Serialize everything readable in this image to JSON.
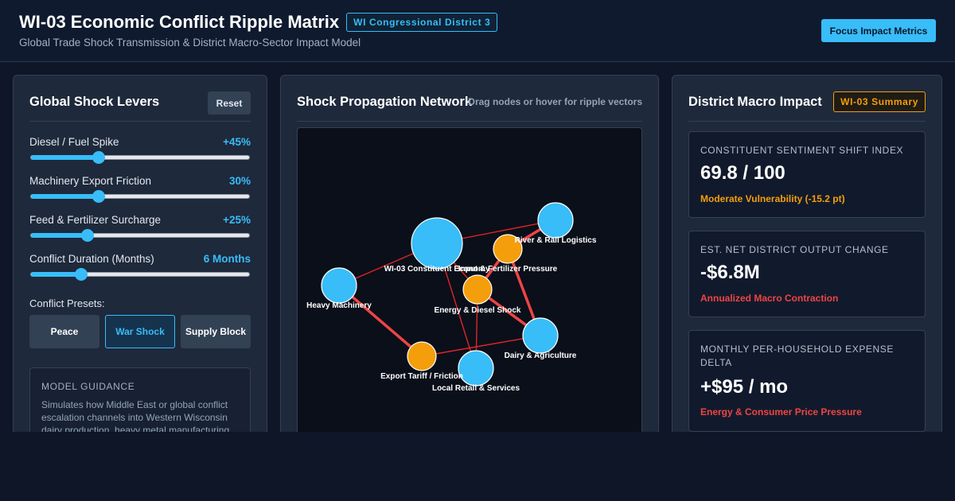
{
  "header": {
    "title": "WI-03 Economic Conflict Ripple Matrix",
    "district_badge": "WI Congressional District 3",
    "subtitle": "Global Trade Shock Transmission & District Macro-Sector Impact Model",
    "focus_button": "Focus Impact Metrics"
  },
  "levers": {
    "title": "Global Shock Levers",
    "reset_label": "Reset",
    "sliders": [
      {
        "label": "Diesel / Fuel Spike",
        "value": "+45%",
        "fraction": 0.31
      },
      {
        "label": "Machinery Export Friction",
        "value": "30%",
        "fraction": 0.31
      },
      {
        "label": "Feed & Fertilizer Surcharge",
        "value": "+25%",
        "fraction": 0.26
      },
      {
        "label": "Conflict Duration (Months)",
        "value": "6 Months",
        "fraction": 0.23
      }
    ],
    "presets_label": "Conflict Presets:",
    "presets": [
      {
        "label": "Peace",
        "active": false
      },
      {
        "label": "War Shock",
        "active": true
      },
      {
        "label": "Supply Block",
        "active": false
      }
    ],
    "guidance_title": "MODEL GUIDANCE",
    "guidance_text": "Simulates how Middle East or global conflict escalation channels into Western Wisconsin dairy production, heavy metal manufacturing"
  },
  "network": {
    "title": "Shock Propagation Network",
    "hint": "Drag nodes or hover for ripple vectors",
    "colors": {
      "district": "#38bdf8",
      "shock": "#f59e0b",
      "heavy_edge": "#ef4444",
      "light_edge": "#dc2626"
    },
    "nodes": [
      {
        "id": "constituent",
        "label": "WI-03 Constituent Economy",
        "kind": "district"
      },
      {
        "id": "rail",
        "label": "River & Rail Logistics",
        "kind": "district"
      },
      {
        "id": "feed",
        "label": "Input & Fertilizer Pressure",
        "kind": "shock"
      },
      {
        "id": "heavy",
        "label": "Heavy Machinery",
        "kind": "district"
      },
      {
        "id": "energy",
        "label": "Energy & Diesel Shock",
        "kind": "shock"
      },
      {
        "id": "dairy",
        "label": "Dairy & Agriculture",
        "kind": "district"
      },
      {
        "id": "tariff",
        "label": "Export Tariff / Friction",
        "kind": "shock"
      },
      {
        "id": "retail",
        "label": "Local Retail & Services",
        "kind": "district"
      }
    ],
    "edges": [
      {
        "from": "constituent",
        "to": "rail",
        "weight": "light"
      },
      {
        "from": "constituent",
        "to": "heavy",
        "weight": "light"
      },
      {
        "from": "constituent",
        "to": "energy",
        "weight": "light"
      },
      {
        "from": "constituent",
        "to": "retail",
        "weight": "light"
      },
      {
        "from": "feed",
        "to": "rail",
        "weight": "heavy"
      },
      {
        "from": "feed",
        "to": "dairy",
        "weight": "heavy"
      },
      {
        "from": "energy",
        "to": "feed",
        "weight": "heavy"
      },
      {
        "from": "energy",
        "to": "dairy",
        "weight": "heavy"
      },
      {
        "from": "energy",
        "to": "retail",
        "weight": "light"
      },
      {
        "from": "heavy",
        "to": "tariff",
        "weight": "heavy"
      },
      {
        "from": "tariff",
        "to": "dairy",
        "weight": "light"
      }
    ]
  },
  "impact": {
    "title": "District Macro Impact",
    "badge": "WI-03 Summary",
    "cards": [
      {
        "label": "CONSTITUENT SENTIMENT SHIFT INDEX",
        "value": "69.8 / 100",
        "note": "Moderate Vulnerability (-15.2 pt)",
        "note_color": "#f59e0b"
      },
      {
        "label": "EST. NET DISTRICT OUTPUT CHANGE",
        "value": "-$6.8M",
        "note": "Annualized Macro Contraction",
        "note_color": "#ef4444"
      },
      {
        "label": "MONTHLY PER-HOUSEHOLD EXPENSE DELTA",
        "value": "+$95 / mo",
        "note": "Energy & Consumer Price Pressure",
        "note_color": "#ef4444"
      }
    ]
  }
}
